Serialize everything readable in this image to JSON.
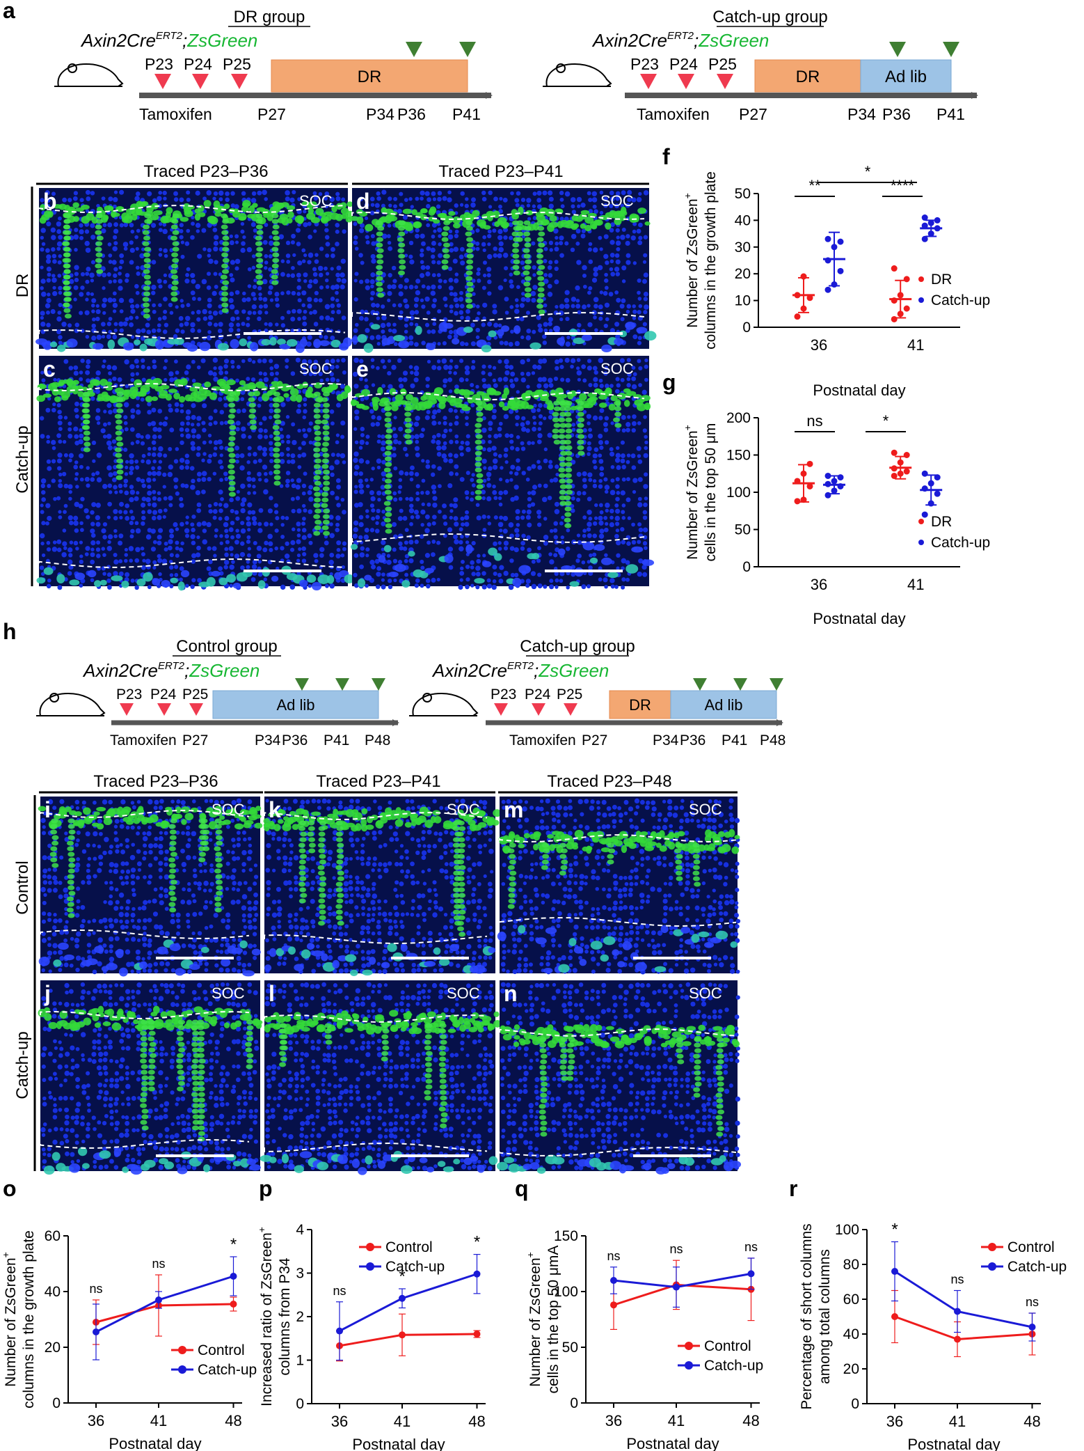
{
  "colors": {
    "dr": "#ee1c1c",
    "catchup": "#1a1ad6",
    "control": "#ee1c1c",
    "zsgreen": "#2ed12e",
    "tamoxifen_marker": "#ef3a4f",
    "sample_marker": "#3f7f32",
    "dr_bar": "#f0a070",
    "adlib_bar": "#9dc3e6",
    "tissue_blue": "#0c1fd6",
    "tissue_green": "#35e040"
  },
  "panel_letters": {
    "a": "a",
    "b": "b",
    "c": "c",
    "d": "d",
    "e": "e",
    "f": "f",
    "g": "g",
    "h": "h",
    "i": "i",
    "j": "j",
    "k": "k",
    "l": "l",
    "m": "m",
    "n": "n",
    "o": "o",
    "p": "p",
    "q": "q",
    "r": "r"
  },
  "schematics": {
    "mouse_line_prefix": "Axin2Cre",
    "mouse_line_super": "ERT2",
    "mouse_line_sep": ";",
    "mouse_line_reporter": "ZsGreen",
    "tamoxifen_days": [
      "P23",
      "P24",
      "P25"
    ],
    "tamoxifen_label": "Tamoxifen",
    "dr_label": "DR",
    "adlib_label": "Ad lib",
    "a_left": {
      "title": "DR group",
      "days": [
        "P27",
        "P34",
        "P36",
        "P41"
      ]
    },
    "a_right": {
      "title": "Catch-up group",
      "days": [
        "P27",
        "P34",
        "P36",
        "P41"
      ]
    },
    "h_left": {
      "title": "Control group",
      "tamoxifen_days": [
        "P23",
        "P24",
        "P25"
      ],
      "tamoxifen_label": "Tamoxifen",
      "p27": "P27",
      "days": [
        "P34",
        "P36",
        "P41",
        "P48"
      ]
    },
    "h_right": {
      "title": "Catch-up group",
      "tamoxifen_days": [
        "P23",
        "P24",
        "P25"
      ],
      "tamoxifen_label": "Tamoxifen",
      "p27": "P27",
      "days": [
        "P34",
        "P36",
        "P41",
        "P48"
      ]
    }
  },
  "micrographs": {
    "top_headers": [
      "Traced P23–P36",
      "Traced P23–P41"
    ],
    "top_rows": [
      "DR",
      "Catch-up"
    ],
    "bottom_headers": [
      "Traced P23–P36",
      "Traced P23–P41",
      "Traced P23–P48"
    ],
    "bottom_rows": [
      "Control",
      "Catch-up"
    ],
    "soc_label": "SOC"
  },
  "chart_data": [
    {
      "panel": "f",
      "type": "scatter",
      "ylabel_line1": "Number of ZsGreen",
      "ylabel_sup": "+",
      "ylabel_line2": "columns in the growth plate",
      "xlabel": "Postnatal day",
      "categories": [
        "36",
        "41"
      ],
      "ylim": [
        0,
        50
      ],
      "yticks": [
        "0",
        "10",
        "20",
        "30",
        "40",
        "50"
      ],
      "series": [
        {
          "name": "DR",
          "means": [
            12,
            10.5
          ],
          "sd": [
            6.5,
            7
          ],
          "points": [
            [
              4,
              7,
              11,
              12,
              19
            ],
            [
              3,
              5,
              7,
              10,
              12,
              18,
              22
            ]
          ]
        },
        {
          "name": "Catch-up",
          "means": [
            25.5,
            37
          ],
          "sd": [
            10,
            3
          ],
          "points": [
            [
              14,
              16,
              21,
              25,
              30,
              32,
              33
            ],
            [
              33,
              35,
              37,
              38,
              39,
              40,
              41
            ]
          ]
        }
      ],
      "significance": [
        {
          "label": "**",
          "between": "DR-36 vs Catch-up-36"
        },
        {
          "label": "****",
          "between": "DR-41 vs Catch-up-41"
        },
        {
          "label": "*",
          "between": "Catch-up-36 vs Catch-up-41"
        }
      ],
      "legend": [
        "DR",
        "Catch-up"
      ],
      "legend_position": "right"
    },
    {
      "panel": "g",
      "type": "scatter",
      "ylabel_line1": "Number of ZsGreen",
      "ylabel_sup": "+",
      "ylabel_line2": "cells in the top 50 μm",
      "xlabel": "Postnatal day",
      "categories": [
        "36",
        "41"
      ],
      "ylim": [
        0,
        200
      ],
      "yticks": [
        "0",
        "50",
        "100",
        "150",
        "200"
      ],
      "series": [
        {
          "name": "DR",
          "means": [
            112,
            133
          ],
          "sd": [
            25,
            15
          ],
          "points": [
            [
              88,
              90,
              108,
              115,
              125,
              138
            ],
            [
              122,
              125,
              128,
              132,
              140,
              150,
              153
            ]
          ]
        },
        {
          "name": "Catch-up",
          "means": [
            110,
            103
          ],
          "sd": [
            12,
            20
          ],
          "points": [
            [
              96,
              102,
              108,
              111,
              115,
              120,
              122
            ],
            [
              70,
              85,
              98,
              105,
              112,
              120,
              125
            ]
          ]
        }
      ],
      "significance": [
        {
          "label": "ns",
          "between": "DR-36 vs Catch-up-36"
        },
        {
          "label": "*",
          "between": "DR-41 vs Catch-up-41"
        }
      ],
      "legend": [
        "DR",
        "Catch-up"
      ],
      "legend_position": "right"
    },
    {
      "panel": "o",
      "type": "line",
      "ylabel_line1": "Number of ZsGreen",
      "ylabel_sup": "+",
      "ylabel_line2": "columns in the growth plate",
      "xlabel": "Postnatal day",
      "x": [
        "36",
        "41",
        "48"
      ],
      "ylim": [
        0,
        60
      ],
      "yticks": [
        "0",
        "20",
        "40",
        "60"
      ],
      "series": [
        {
          "name": "Control",
          "values": [
            29,
            35,
            35.5
          ],
          "err": [
            8,
            11,
            2.5
          ]
        },
        {
          "name": "Catch-up",
          "values": [
            25.5,
            37,
            45.5
          ],
          "err": [
            10,
            3,
            7
          ]
        }
      ],
      "significance": [
        "ns",
        "ns",
        "*"
      ],
      "legend": [
        "Control",
        "Catch-up"
      ],
      "legend_position": "bottom-right"
    },
    {
      "panel": "p",
      "type": "line",
      "ylabel_line1": "Increased ratio of ZsGreen",
      "ylabel_sup": "+",
      "ylabel_line2": "columns from P34",
      "xlabel": "Postnatal day",
      "x": [
        "36",
        "41",
        "48"
      ],
      "ylim": [
        0,
        4
      ],
      "yticks": [
        "0",
        "1",
        "2",
        "3",
        "4"
      ],
      "series": [
        {
          "name": "Control",
          "values": [
            1.33,
            1.58,
            1.6
          ],
          "err": [
            0.35,
            0.48,
            0.08
          ]
        },
        {
          "name": "Catch-up",
          "values": [
            1.67,
            2.42,
            2.98
          ],
          "err": [
            0.67,
            0.22,
            0.45
          ]
        }
      ],
      "significance": [
        "ns",
        "*",
        "*"
      ],
      "legend": [
        "Control",
        "Catch-up"
      ],
      "legend_position": "top-left"
    },
    {
      "panel": "q",
      "type": "line",
      "ylabel_line1": "Number of ZsGreen",
      "ylabel_sup": "+",
      "ylabel_line2": "cells in the top 50 μmA",
      "xlabel": "Postnatal day",
      "x": [
        "36",
        "41",
        "48"
      ],
      "ylim": [
        0,
        150
      ],
      "yticks": [
        "0",
        "50",
        "100",
        "150"
      ],
      "series": [
        {
          "name": "Control",
          "values": [
            88,
            106,
            102
          ],
          "err": [
            22,
            22,
            28
          ]
        },
        {
          "name": "Catch-up",
          "values": [
            110,
            104,
            116
          ],
          "err": [
            12,
            18,
            14
          ]
        }
      ],
      "significance": [
        "ns",
        "ns",
        "ns"
      ],
      "legend": [
        "Control",
        "Catch-up"
      ],
      "legend_position": "bottom-right"
    },
    {
      "panel": "r",
      "type": "line",
      "ylabel_line1": "Percentage of short columns",
      "ylabel_sup": "",
      "ylabel_line2": "among total columns",
      "xlabel": "Postnatal day",
      "x": [
        "36",
        "41",
        "48"
      ],
      "ylim": [
        0,
        100
      ],
      "yticks": [
        "0",
        "20",
        "40",
        "60",
        "80",
        "100"
      ],
      "series": [
        {
          "name": "Control",
          "values": [
            50,
            37,
            40
          ],
          "err": [
            15,
            10,
            12
          ]
        },
        {
          "name": "Catch-up",
          "values": [
            76,
            53,
            44
          ],
          "err": [
            17,
            12,
            8
          ]
        }
      ],
      "significance": [
        "*",
        "ns",
        "ns"
      ],
      "legend": [
        "Control",
        "Catch-up"
      ],
      "legend_position": "top-right"
    }
  ]
}
